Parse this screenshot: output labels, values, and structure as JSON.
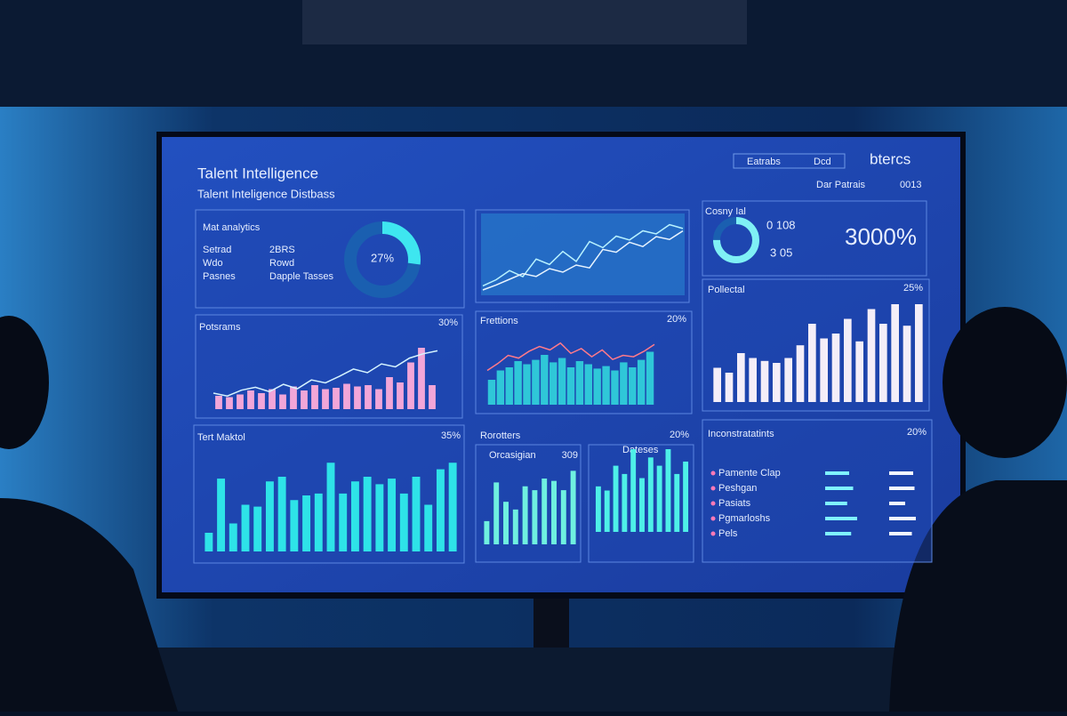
{
  "header": {
    "title": "Talent Intelligence",
    "subtitle": "Talent Inteligence Distbass",
    "search": "Eatrabs",
    "search_tag": "Dcd",
    "logo": "btercs",
    "filter": "Dar Patrais",
    "filter_value": "0013"
  },
  "mat_analytics": {
    "title": "Mat analytics",
    "rows": [
      [
        "Setrad",
        "2BRS"
      ],
      [
        "Wdo",
        "Rowd"
      ],
      [
        "Pasnes",
        "Dapple Tasses"
      ]
    ],
    "donut": {
      "value": 27,
      "label": "27%"
    }
  },
  "trend": {
    "line1": [
      10,
      18,
      30,
      22,
      45,
      38,
      55,
      42,
      68,
      60,
      75,
      70,
      82,
      78,
      90,
      85
    ],
    "line2": [
      5,
      12,
      20,
      28,
      24,
      35,
      30,
      40,
      36,
      62,
      58,
      72,
      66,
      80,
      76,
      88
    ]
  },
  "cosny": {
    "title": "Cosny Ial",
    "stat1": "0 108",
    "stat2": "3 05",
    "big": "3000%",
    "donut_share": 75
  },
  "potsrams": {
    "title": "Potsrams",
    "badge": "30%",
    "bars": [
      20,
      18,
      22,
      28,
      24,
      30,
      22,
      34,
      28,
      36,
      30,
      32,
      38,
      34,
      36,
      30,
      48,
      40,
      70,
      92,
      36
    ],
    "line": [
      22,
      18,
      26,
      30,
      24,
      34,
      28,
      40,
      36,
      45,
      55,
      50,
      62,
      58,
      70,
      76,
      80
    ]
  },
  "frettions": {
    "title": "Frettions",
    "badge": "20%",
    "bars": [
      40,
      55,
      60,
      70,
      65,
      72,
      80,
      68,
      75,
      60,
      70,
      65,
      58,
      62,
      55,
      68,
      60,
      72,
      85
    ],
    "line": [
      50,
      60,
      72,
      68,
      78,
      85,
      80,
      90,
      75,
      82,
      70,
      80,
      66,
      72,
      70,
      78,
      88
    ]
  },
  "pollectal": {
    "title": "Pollectal",
    "badge": "25%",
    "bars": [
      35,
      30,
      50,
      45,
      42,
      40,
      45,
      58,
      80,
      65,
      70,
      85,
      62,
      95,
      80,
      100,
      78,
      100
    ]
  },
  "tert_maktol": {
    "title": "Tert Maktol",
    "badge": "35%",
    "bars": [
      20,
      78,
      30,
      50,
      48,
      75,
      80,
      55,
      60,
      62,
      95,
      62,
      75,
      80,
      72,
      78,
      62,
      80,
      50,
      88,
      95
    ]
  },
  "rorotters": {
    "title": "Rorotters",
    "subtitle": "Orcasigian",
    "value": "309",
    "bars": [
      30,
      80,
      55,
      45,
      75,
      70,
      85,
      82,
      70,
      95
    ]
  },
  "dateses": {
    "title": "Dateses",
    "badge": "20%",
    "bars": [
      55,
      50,
      80,
      70,
      100,
      65,
      90,
      80,
      100,
      70,
      85
    ]
  },
  "inconstratatints": {
    "title": "Inconstratatints",
    "badge": "20%",
    "rows": [
      {
        "label": "Pamente Clap",
        "a": 60,
        "b": 90
      },
      {
        "label": "Peshgan",
        "a": 70,
        "b": 95
      },
      {
        "label": "Pasiats",
        "a": 55,
        "b": 60
      },
      {
        "label": "Pgmarloshs",
        "a": 80,
        "b": 100
      },
      {
        "label": "Pels",
        "a": 65,
        "b": 85
      }
    ]
  }
}
